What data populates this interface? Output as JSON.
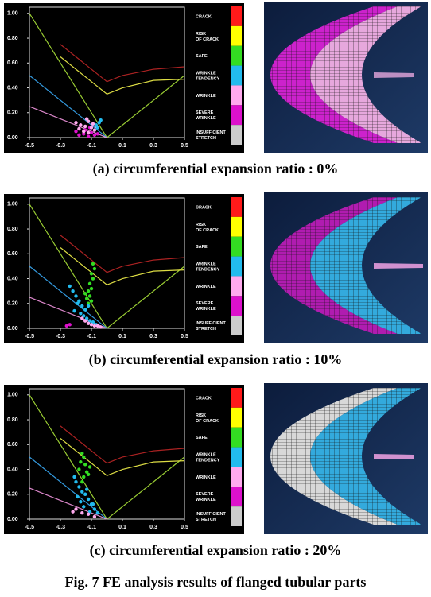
{
  "figure_caption": "Fig. 7 FE analysis results of flanged tubular parts",
  "chart_data": [
    {
      "type": "scatter",
      "caption": "(a) circumferential expansion ratio : 0%",
      "xlim": [
        -0.5,
        0.5
      ],
      "ylim": [
        0,
        1.05
      ],
      "xticks": [
        -0.5,
        -0.3,
        -0.1,
        0.1,
        0.3,
        0.5
      ],
      "yticks": [
        {
          "value": 0,
          "label": "0.00"
        },
        {
          "value": 0.2,
          "label": "0.20"
        },
        {
          "value": 0.4,
          "label": "0.40"
        },
        {
          "value": 0.6,
          "label": "0.60"
        },
        {
          "value": 0.8,
          "label": "0.80"
        },
        {
          "value": 1.0,
          "label": "1.00"
        }
      ],
      "legend": [
        {
          "label": [
            "CRACK"
          ],
          "color": "#ff1a1a"
        },
        {
          "label": [
            "RISK",
            "OF CRACK"
          ],
          "color": "#ffff00"
        },
        {
          "label": [
            "SAFE"
          ],
          "color": "#33dd22"
        },
        {
          "label": [
            "WRINKLE",
            "TENDENCY"
          ],
          "color": "#22bbee"
        },
        {
          "label": [
            "WRINKLE"
          ],
          "color": "#ffaaee"
        },
        {
          "label": [
            "SEVERE",
            "WRINKLE"
          ],
          "color": "#dd11cc"
        },
        {
          "label": [
            "INSUFFICIENT",
            "STRETCH"
          ],
          "color": "#cccccc"
        }
      ],
      "lines": [
        {
          "color": "#99cc33",
          "x": [
            -0.5,
            0,
            0.5
          ],
          "values": [
            1.0,
            0,
            0.5
          ]
        },
        {
          "color": "#3399dd",
          "x": [
            -0.5,
            0
          ],
          "values": [
            0.5,
            0
          ]
        },
        {
          "color": "#dd88cc",
          "x": [
            -0.5,
            0
          ],
          "values": [
            0.25,
            0
          ]
        },
        {
          "color": "#aa2222",
          "x": [
            -0.3,
            0,
            0.1,
            0.3,
            0.5
          ],
          "values": [
            0.75,
            0.45,
            0.5,
            0.55,
            0.57
          ]
        },
        {
          "color": "#dddd44",
          "x": [
            -0.3,
            0,
            0.1,
            0.3,
            0.5
          ],
          "values": [
            0.65,
            0.35,
            0.4,
            0.46,
            0.47
          ]
        }
      ],
      "series": [
        {
          "color": "#dd11cc",
          "x": [
            -0.18,
            -0.15,
            -0.12,
            -0.1,
            -0.08,
            -0.2,
            -0.14,
            -0.06,
            -0.11,
            -0.17
          ],
          "values": [
            0.02,
            0.03,
            0.01,
            0.04,
            0.02,
            0.05,
            0.06,
            0.03,
            0.08,
            0.1
          ]
        },
        {
          "color": "#ffaaee",
          "x": [
            -0.2,
            -0.17,
            -0.14,
            -0.12,
            -0.1,
            -0.08,
            -0.15,
            -0.12,
            -0.09,
            -0.18,
            -0.13,
            -0.07
          ],
          "values": [
            0.12,
            0.1,
            0.09,
            0.13,
            0.08,
            0.06,
            0.05,
            0.04,
            0.11,
            0.07,
            0.15,
            0.09
          ]
        },
        {
          "color": "#22bbee",
          "x": [
            -0.07,
            -0.05,
            -0.06,
            -0.04
          ],
          "values": [
            0.1,
            0.12,
            0.08,
            0.14
          ]
        }
      ]
    },
    {
      "type": "scatter",
      "caption": "(b) circumferential expansion ratio : 10%",
      "xlim": [
        -0.5,
        0.5
      ],
      "ylim": [
        0,
        1.05
      ],
      "xticks": [
        -0.5,
        -0.3,
        -0.1,
        0.1,
        0.3,
        0.5
      ],
      "yticks": [
        {
          "value": 0,
          "label": "0.00"
        },
        {
          "value": 0.2,
          "label": "0.20"
        },
        {
          "value": 0.4,
          "label": "0.40"
        },
        {
          "value": 0.6,
          "label": "0.60"
        },
        {
          "value": 0.8,
          "label": "0.80"
        },
        {
          "value": 1.0,
          "label": "1.00"
        }
      ],
      "legend": [
        {
          "label": [
            "CRACK"
          ],
          "color": "#ff1a1a"
        },
        {
          "label": [
            "RISK",
            "OF CRACK"
          ],
          "color": "#ffff00"
        },
        {
          "label": [
            "SAFE"
          ],
          "color": "#33dd22"
        },
        {
          "label": [
            "WRINKLE",
            "TENDENCY"
          ],
          "color": "#22bbee"
        },
        {
          "label": [
            "WRINKLE"
          ],
          "color": "#ffaaee"
        },
        {
          "label": [
            "SEVERE",
            "WRINKLE"
          ],
          "color": "#dd11cc"
        },
        {
          "label": [
            "INSUFFICIENT",
            "STRETCH"
          ],
          "color": "#cccccc"
        }
      ],
      "lines": [
        {
          "color": "#99cc33",
          "x": [
            -0.5,
            0,
            0.5
          ],
          "values": [
            1.0,
            0,
            0.5
          ]
        },
        {
          "color": "#3399dd",
          "x": [
            -0.5,
            0
          ],
          "values": [
            0.5,
            0
          ]
        },
        {
          "color": "#dd88cc",
          "x": [
            -0.5,
            0
          ],
          "values": [
            0.25,
            0
          ]
        },
        {
          "color": "#aa2222",
          "x": [
            -0.3,
            0,
            0.1,
            0.3,
            0.5
          ],
          "values": [
            0.75,
            0.45,
            0.5,
            0.55,
            0.57
          ]
        },
        {
          "color": "#dddd44",
          "x": [
            -0.3,
            0,
            0.1,
            0.3,
            0.5
          ],
          "values": [
            0.65,
            0.35,
            0.4,
            0.46,
            0.47
          ]
        }
      ],
      "series": [
        {
          "color": "#33dd22",
          "x": [
            -0.09,
            -0.08,
            -0.1,
            -0.09,
            -0.11,
            -0.1,
            -0.12,
            -0.11,
            -0.13,
            -0.12,
            -0.14,
            -0.1
          ],
          "values": [
            0.52,
            0.48,
            0.44,
            0.4,
            0.36,
            0.32,
            0.3,
            0.26,
            0.24,
            0.2,
            0.28,
            0.22
          ]
        },
        {
          "color": "#22bbee",
          "x": [
            -0.22,
            -0.2,
            -0.18,
            -0.16,
            -0.14,
            -0.19,
            -0.17,
            -0.15,
            -0.13,
            -0.11,
            -0.09,
            -0.07,
            -0.24,
            -0.21,
            -0.12
          ],
          "values": [
            0.3,
            0.26,
            0.22,
            0.18,
            0.15,
            0.2,
            0.12,
            0.1,
            0.08,
            0.06,
            0.05,
            0.03,
            0.34,
            0.14,
            0.18
          ]
        },
        {
          "color": "#ffaaee",
          "x": [
            -0.14,
            -0.12,
            -0.1,
            -0.08,
            -0.06,
            -0.04,
            -0.16
          ],
          "values": [
            0.06,
            0.04,
            0.03,
            0.02,
            0.02,
            0.01,
            0.08
          ]
        },
        {
          "color": "#dd11cc",
          "x": [
            -0.26,
            -0.24
          ],
          "values": [
            0.02,
            0.03
          ]
        }
      ]
    },
    {
      "type": "scatter",
      "caption": "(c) circumferential expansion ratio : 20%",
      "xlim": [
        -0.5,
        0.5
      ],
      "ylim": [
        0,
        1.05
      ],
      "xticks": [
        -0.5,
        -0.3,
        -0.1,
        0.1,
        0.3,
        0.5
      ],
      "yticks": [
        {
          "value": 0,
          "label": "0.00"
        },
        {
          "value": 0.2,
          "label": "0.20"
        },
        {
          "value": 0.4,
          "label": "0.40"
        },
        {
          "value": 0.6,
          "label": "0.60"
        },
        {
          "value": 0.8,
          "label": "0.80"
        },
        {
          "value": 1.0,
          "label": "1.00"
        }
      ],
      "legend": [
        {
          "label": [
            "CRACK"
          ],
          "color": "#ff1a1a"
        },
        {
          "label": [
            "RISK",
            "OF CRACK"
          ],
          "color": "#ffff00"
        },
        {
          "label": [
            "SAFE"
          ],
          "color": "#33dd22"
        },
        {
          "label": [
            "WRINKLE",
            "TENDENCY"
          ],
          "color": "#22bbee"
        },
        {
          "label": [
            "WRINKLE"
          ],
          "color": "#ffaaee"
        },
        {
          "label": [
            "SEVERE",
            "WRINKLE"
          ],
          "color": "#dd11cc"
        },
        {
          "label": [
            "INSUFFICIENT",
            "STRETCH"
          ],
          "color": "#cccccc"
        }
      ],
      "lines": [
        {
          "color": "#99cc33",
          "x": [
            -0.5,
            0,
            0.5
          ],
          "values": [
            1.0,
            0,
            0.5
          ]
        },
        {
          "color": "#3399dd",
          "x": [
            -0.5,
            0
          ],
          "values": [
            0.5,
            0
          ]
        },
        {
          "color": "#dd88cc",
          "x": [
            -0.5,
            0
          ],
          "values": [
            0.25,
            0
          ]
        },
        {
          "color": "#aa2222",
          "x": [
            -0.3,
            0,
            0.1,
            0.3,
            0.5
          ],
          "values": [
            0.75,
            0.45,
            0.5,
            0.55,
            0.57
          ]
        },
        {
          "color": "#dddd44",
          "x": [
            -0.3,
            0,
            0.1,
            0.3,
            0.5
          ],
          "values": [
            0.65,
            0.35,
            0.4,
            0.46,
            0.47
          ]
        }
      ],
      "series": [
        {
          "color": "#33dd22",
          "x": [
            -0.16,
            -0.15,
            -0.17,
            -0.14,
            -0.18,
            -0.13,
            -0.15,
            -0.12,
            -0.16,
            -0.11
          ],
          "values": [
            0.53,
            0.5,
            0.46,
            0.44,
            0.4,
            0.38,
            0.34,
            0.36,
            0.3,
            0.42
          ]
        },
        {
          "color": "#22bbee",
          "x": [
            -0.2,
            -0.18,
            -0.16,
            -0.14,
            -0.12,
            -0.1,
            -0.08,
            -0.06,
            -0.19,
            -0.17,
            -0.15,
            -0.13,
            -0.11,
            -0.09,
            -0.21
          ],
          "values": [
            0.3,
            0.26,
            0.22,
            0.2,
            0.16,
            0.12,
            0.08,
            0.05,
            0.18,
            0.14,
            0.1,
            0.24,
            0.06,
            0.12,
            0.34
          ]
        },
        {
          "color": "#ffaaee",
          "x": [
            -0.22,
            -0.2,
            -0.16,
            -0.12,
            -0.08
          ],
          "values": [
            0.06,
            0.08,
            0.05,
            0.04,
            0.02
          ]
        }
      ]
    }
  ]
}
